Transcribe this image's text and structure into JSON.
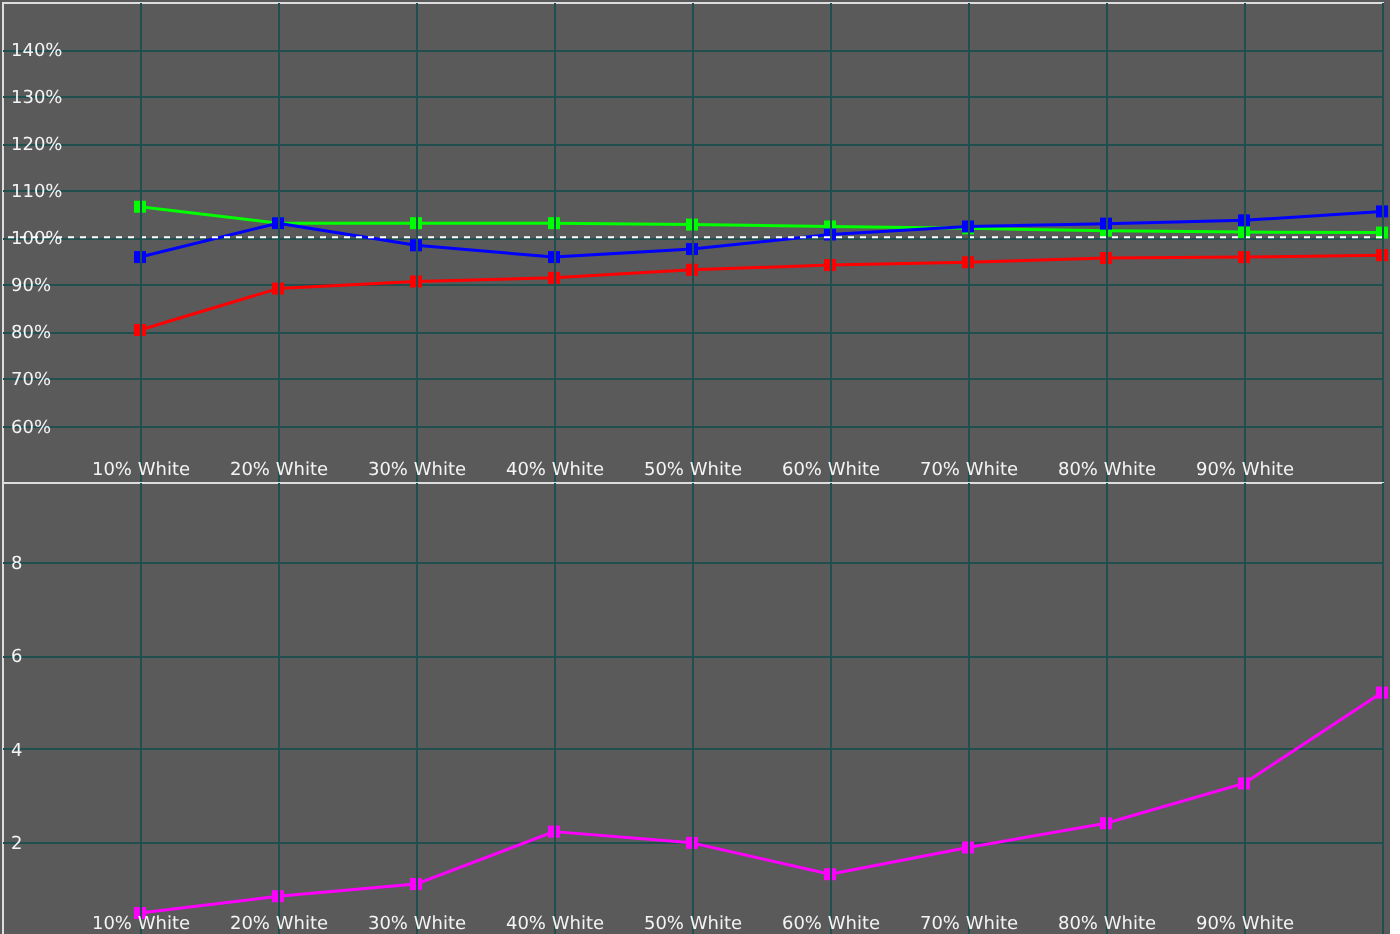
{
  "chart_data": [
    {
      "type": "line",
      "x": [
        10,
        20,
        30,
        40,
        50,
        60,
        70,
        80,
        90,
        100
      ],
      "xlim": [
        0,
        100
      ],
      "xticks": [
        {
          "value": 10,
          "label": "10% White"
        },
        {
          "value": 20,
          "label": "20% White"
        },
        {
          "value": 30,
          "label": "30% White"
        },
        {
          "value": 40,
          "label": "40% White"
        },
        {
          "value": 50,
          "label": "50% White"
        },
        {
          "value": 60,
          "label": "60% White"
        },
        {
          "value": 70,
          "label": "70% White"
        },
        {
          "value": 80,
          "label": "80% White"
        },
        {
          "value": 90,
          "label": "90% White"
        },
        {
          "value": 100,
          "label": null
        }
      ],
      "ylim": [
        48,
        150
      ],
      "yticks": [
        {
          "value": 60,
          "label": "60%"
        },
        {
          "value": 70,
          "label": "70%"
        },
        {
          "value": 80,
          "label": "80%"
        },
        {
          "value": 90,
          "label": "90%"
        },
        {
          "value": 100,
          "label": "100%"
        },
        {
          "value": 110,
          "label": "110%"
        },
        {
          "value": 120,
          "label": "120%"
        },
        {
          "value": 130,
          "label": "130%"
        },
        {
          "value": 140,
          "label": "140%"
        }
      ],
      "series": [
        {
          "color": "#00ff00",
          "values": [
            106.5,
            103,
            103,
            103,
            102.7,
            102.3,
            101.9,
            101.4,
            101.1,
            101
          ]
        },
        {
          "color": "#0000ff",
          "values": [
            95.8,
            103,
            98.3,
            95.8,
            97.5,
            100.6,
            102.3,
            102.9,
            103.6,
            105.5
          ]
        },
        {
          "color": "#ff0000",
          "values": [
            80.3,
            89.1,
            90.6,
            91.4,
            93.1,
            94.1,
            94.7,
            95.6,
            95.8,
            96.2
          ]
        }
      ],
      "ref_lines": [
        {
          "axis": "y",
          "value": 100,
          "color": "#ffffff",
          "line_style": "dashed"
        }
      ],
      "grid": true,
      "legend": false,
      "marker": "square",
      "line_style": "solid"
    },
    {
      "type": "line",
      "x": [
        10,
        20,
        30,
        40,
        50,
        60,
        70,
        80,
        90,
        100
      ],
      "xlim": [
        0,
        100
      ],
      "xticks": [
        {
          "value": 10,
          "label": "10% White"
        },
        {
          "value": 20,
          "label": "20% White"
        },
        {
          "value": 30,
          "label": "30% White"
        },
        {
          "value": 40,
          "label": "40% White"
        },
        {
          "value": 50,
          "label": "50% White"
        },
        {
          "value": 60,
          "label": "60% White"
        },
        {
          "value": 70,
          "label": "70% White"
        },
        {
          "value": 80,
          "label": "80% White"
        },
        {
          "value": 90,
          "label": "90% White"
        },
        {
          "value": 100,
          "label": null
        }
      ],
      "ylim": [
        0,
        9.7
      ],
      "yticks": [
        2,
        4,
        6,
        8
      ],
      "series": [
        {
          "color": "#ff00ff",
          "values": [
            0.49,
            0.85,
            1.11,
            2.23,
            1.99,
            1.32,
            1.89,
            2.41,
            3.26,
            5.2
          ]
        }
      ],
      "grid": true,
      "legend": false,
      "marker": "square",
      "line_style": "solid"
    }
  ]
}
